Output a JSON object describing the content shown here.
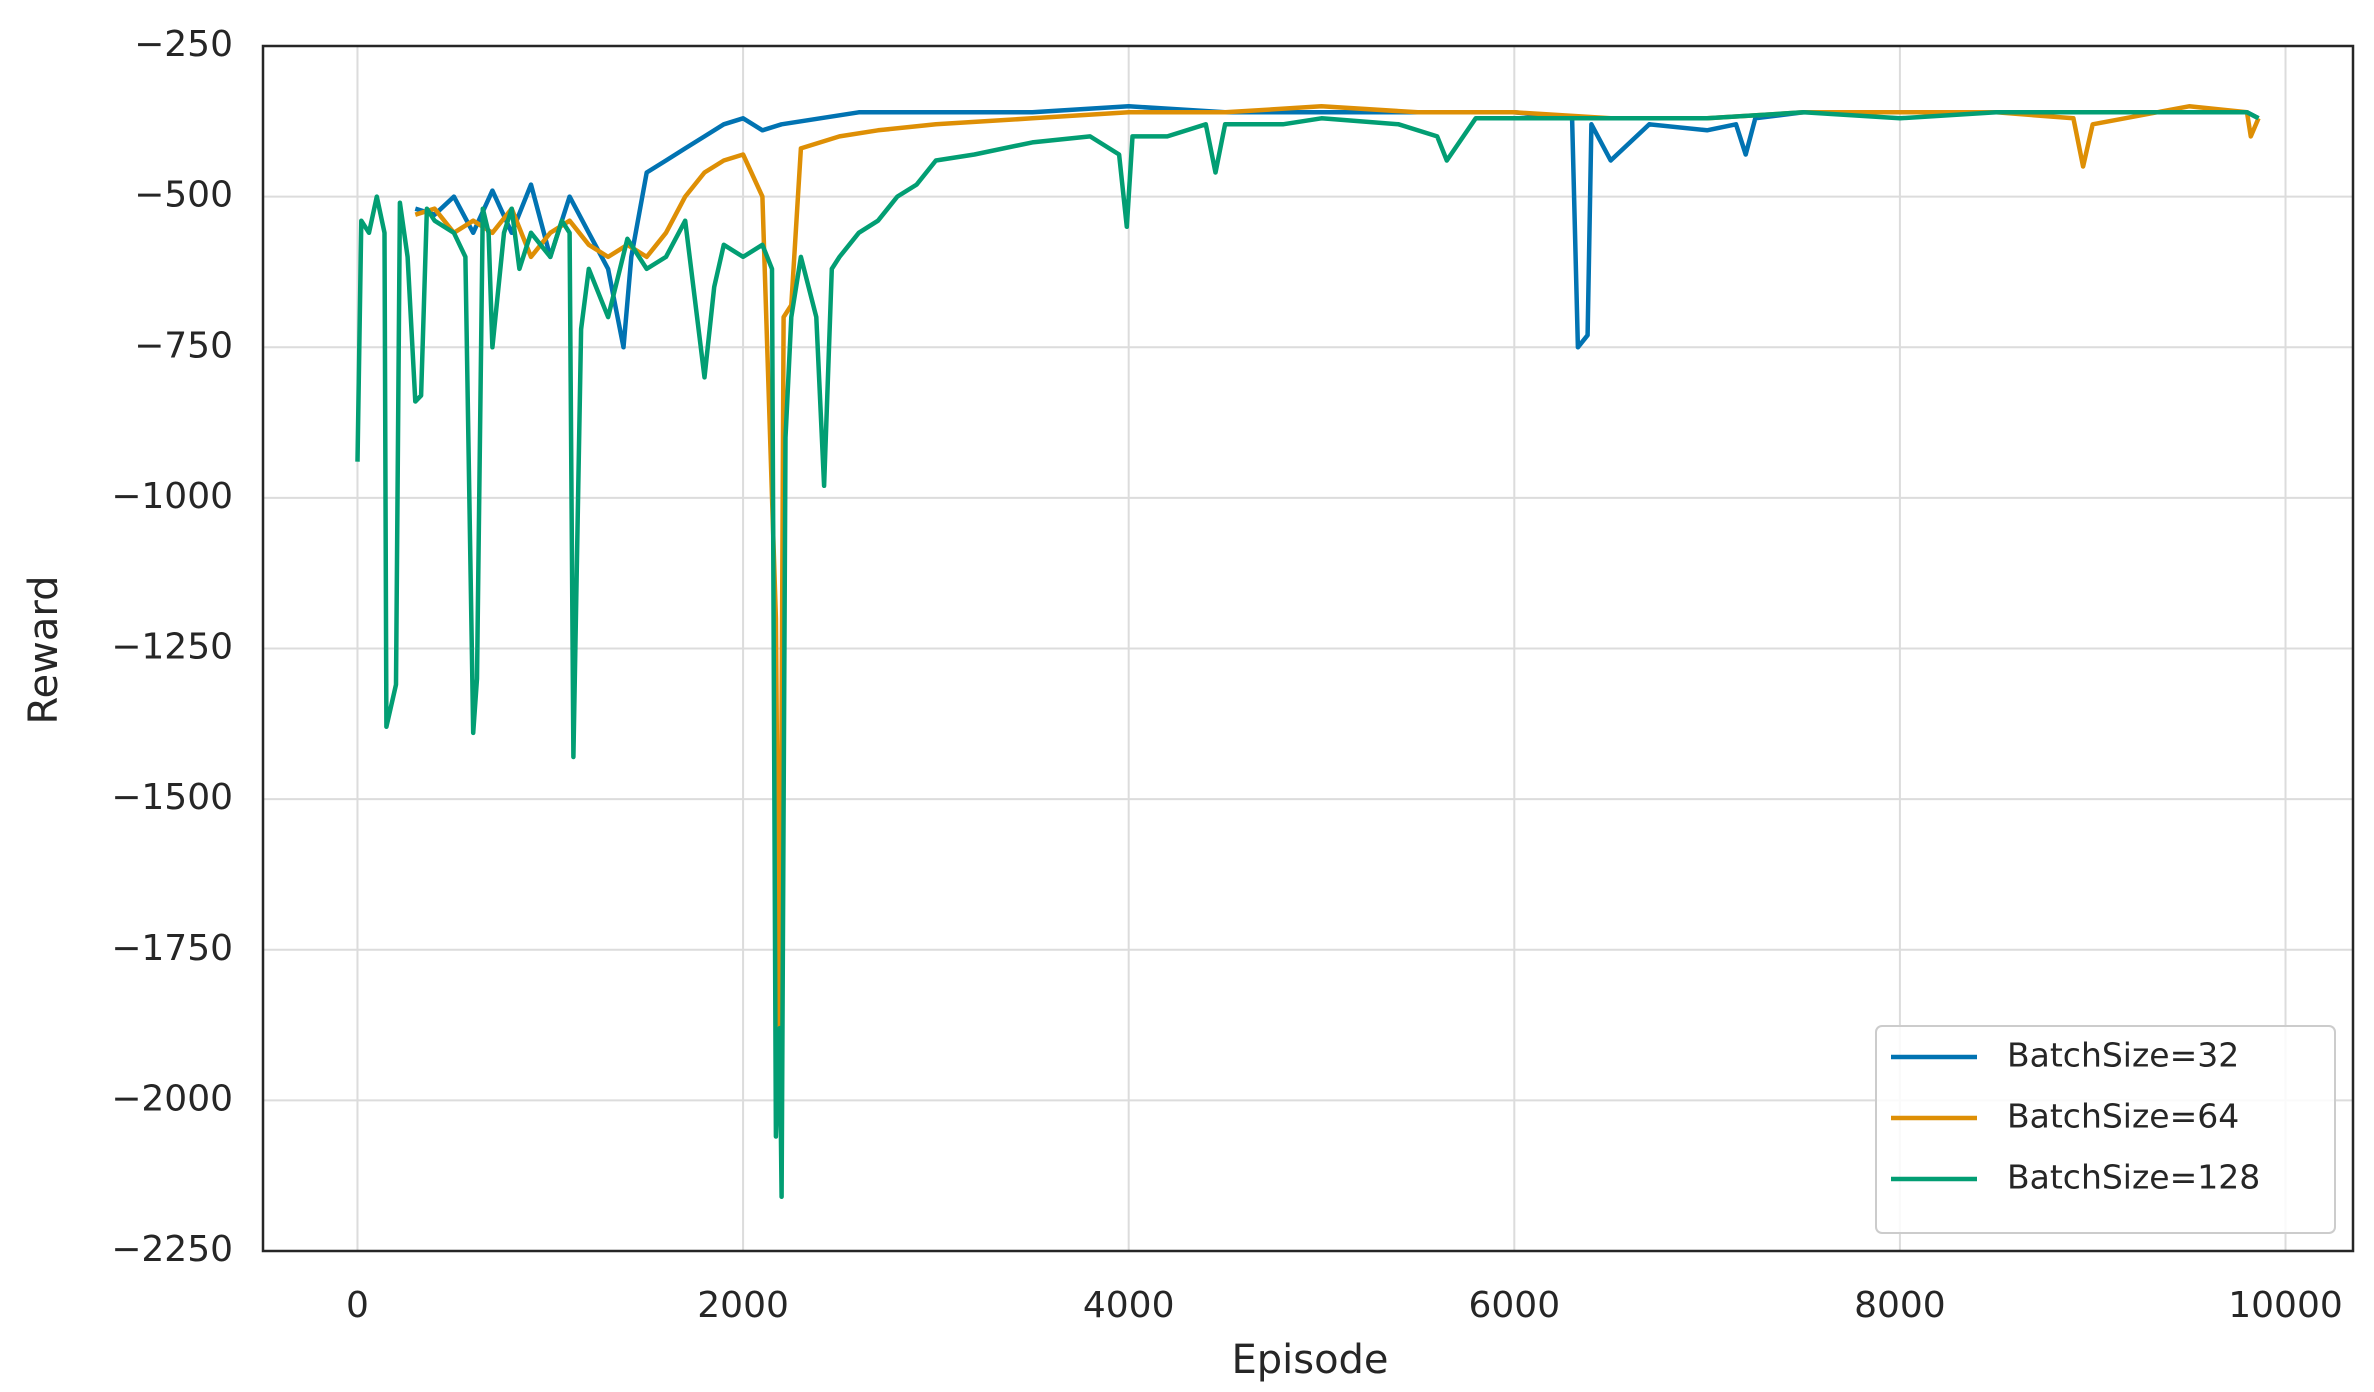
{
  "chart_data": {
    "type": "line",
    "xlabel": "Episode",
    "ylabel": "Reward",
    "xlim": [
      -490,
      10350
    ],
    "ylim": [
      -2250,
      -250
    ],
    "xticks": [
      0,
      2000,
      4000,
      6000,
      8000,
      10000
    ],
    "yticks": [
      {
        "value": -250,
        "label": "−250"
      },
      {
        "value": -500,
        "label": "−500"
      },
      {
        "value": -750,
        "label": "−750"
      },
      {
        "value": -1000,
        "label": "−1000"
      },
      {
        "value": -1250,
        "label": "−1250"
      },
      {
        "value": -1500,
        "label": "−1500"
      },
      {
        "value": -1750,
        "label": "−1750"
      },
      {
        "value": -2000,
        "label": "−2000"
      },
      {
        "value": -2250,
        "label": "−2250"
      }
    ],
    "grid": true,
    "legend": "lower right",
    "series": [
      {
        "name": "BatchSize=32",
        "color": "#0173b2",
        "x": [
          300,
          400,
          500,
          600,
          700,
          800,
          900,
          1000,
          1100,
          1200,
          1300,
          1380,
          1420,
          1500,
          1600,
          1700,
          1800,
          1900,
          2000,
          2100,
          2200,
          2400,
          2600,
          3000,
          3500,
          4000,
          4500,
          5000,
          5500,
          6000,
          6300,
          6330,
          6380,
          6400,
          6500,
          6700,
          7000,
          7150,
          7200,
          7250,
          7500,
          8000,
          8500,
          9000,
          9500,
          9800,
          9860
        ],
        "values": [
          -520,
          -530,
          -500,
          -560,
          -490,
          -560,
          -480,
          -600,
          -500,
          -560,
          -620,
          -750,
          -600,
          -460,
          -440,
          -420,
          -400,
          -380,
          -370,
          -390,
          -380,
          -370,
          -360,
          -360,
          -360,
          -350,
          -360,
          -360,
          -360,
          -360,
          -370,
          -750,
          -730,
          -380,
          -440,
          -380,
          -390,
          -380,
          -430,
          -370,
          -360,
          -360,
          -360,
          -360,
          -360,
          -360,
          -370
        ]
      },
      {
        "name": "BatchSize=64",
        "color": "#de8f05",
        "x": [
          300,
          400,
          500,
          600,
          700,
          800,
          900,
          1000,
          1100,
          1200,
          1300,
          1400,
          1500,
          1600,
          1700,
          1800,
          1900,
          2000,
          2100,
          2170,
          2190,
          2210,
          2250,
          2300,
          2400,
          2500,
          2700,
          3000,
          3500,
          4000,
          4500,
          5000,
          5500,
          6000,
          6500,
          7000,
          7500,
          8000,
          8500,
          8900,
          8950,
          9000,
          9500,
          9800,
          9820,
          9860
        ],
        "values": [
          -530,
          -520,
          -560,
          -540,
          -560,
          -520,
          -600,
          -560,
          -540,
          -580,
          -600,
          -580,
          -600,
          -560,
          -500,
          -460,
          -440,
          -430,
          -500,
          -1200,
          -2000,
          -700,
          -680,
          -420,
          -410,
          -400,
          -390,
          -380,
          -370,
          -360,
          -360,
          -350,
          -360,
          -360,
          -370,
          -370,
          -360,
          -360,
          -360,
          -370,
          -450,
          -380,
          -350,
          -360,
          -400,
          -370
        ]
      },
      {
        "name": "BatchSize=128",
        "color": "#029e73",
        "x": [
          0,
          20,
          60,
          100,
          140,
          150,
          200,
          220,
          260,
          300,
          330,
          360,
          400,
          500,
          560,
          600,
          620,
          650,
          680,
          700,
          760,
          800,
          840,
          900,
          1000,
          1060,
          1100,
          1120,
          1160,
          1200,
          1300,
          1400,
          1500,
          1600,
          1700,
          1800,
          1850,
          1900,
          2000,
          2100,
          2150,
          2170,
          2190,
          2200,
          2220,
          2250,
          2300,
          2380,
          2420,
          2460,
          2500,
          2600,
          2700,
          2800,
          2900,
          3000,
          3200,
          3500,
          3800,
          3950,
          3990,
          4020,
          4200,
          4400,
          4450,
          4500,
          4800,
          5000,
          5400,
          5600,
          5650,
          5800,
          6000,
          6500,
          7000,
          7500,
          8000,
          8500,
          9000,
          9500,
          9800,
          9860
        ],
        "values": [
          -940,
          -540,
          -560,
          -500,
          -560,
          -1380,
          -1310,
          -510,
          -600,
          -840,
          -830,
          -520,
          -540,
          -560,
          -600,
          -1390,
          -1300,
          -520,
          -560,
          -750,
          -560,
          -520,
          -620,
          -560,
          -600,
          -540,
          -560,
          -1430,
          -720,
          -620,
          -700,
          -570,
          -620,
          -600,
          -540,
          -800,
          -650,
          -580,
          -600,
          -580,
          -620,
          -2060,
          -1880,
          -2160,
          -900,
          -700,
          -600,
          -700,
          -980,
          -620,
          -600,
          -560,
          -540,
          -500,
          -480,
          -440,
          -430,
          -410,
          -400,
          -430,
          -550,
          -400,
          -400,
          -380,
          -460,
          -380,
          -380,
          -370,
          -380,
          -400,
          -440,
          -370,
          -370,
          -370,
          -370,
          -360,
          -370,
          -360,
          -360,
          -360,
          -360,
          -370
        ]
      }
    ]
  }
}
